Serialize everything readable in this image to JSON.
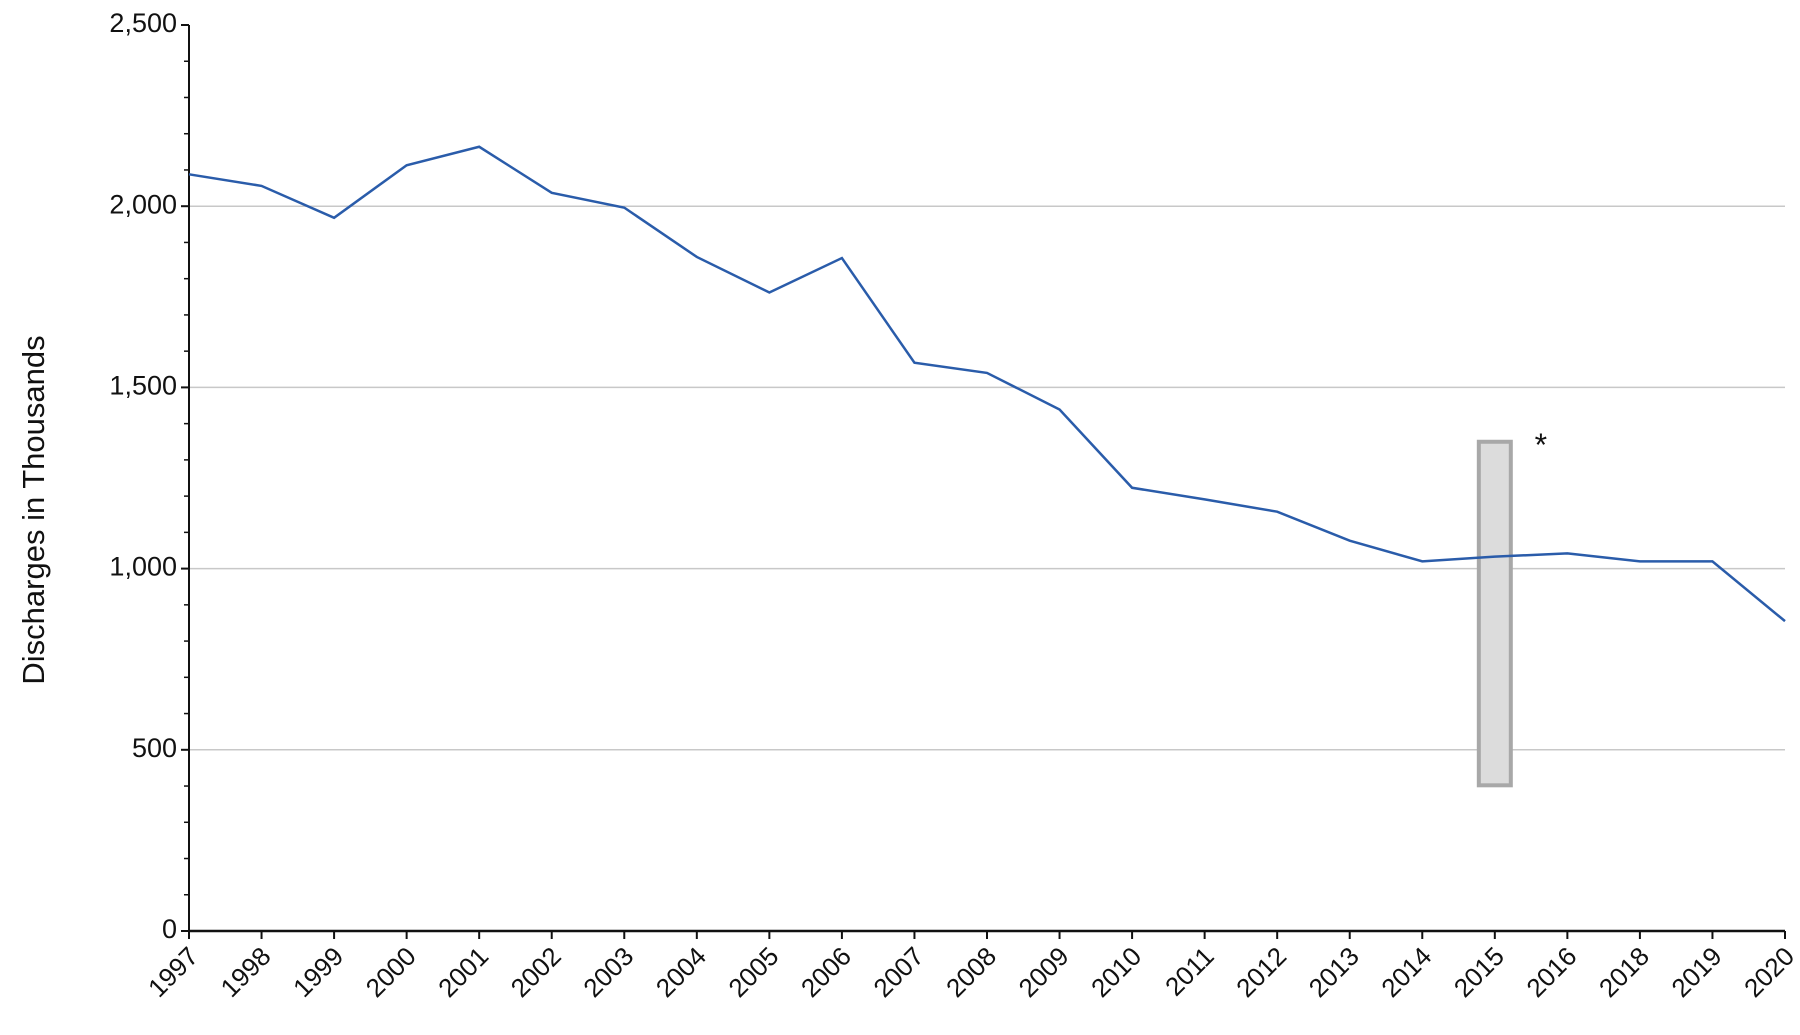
{
  "chart_data": {
    "type": "line",
    "y_label": "Discharges in Thousands",
    "categories": [
      "1997",
      "1998",
      "1999",
      "2000",
      "2001",
      "2002",
      "2003",
      "2004",
      "2005",
      "2006",
      "2007",
      "2008",
      "2009",
      "2010",
      "2011",
      "2012",
      "2013",
      "2014",
      "2015",
      "2016",
      "2018",
      "2019",
      "2020"
    ],
    "series": [
      {
        "color": "#2a5caa",
        "values": [
          2088,
          2056,
          1968,
          2113,
          2164,
          2037,
          1996,
          1860,
          1762,
          1857,
          1568,
          1540,
          1439,
          1223,
          1191,
          1157,
          1077,
          1020,
          1033,
          1042,
          1020,
          1020,
          855
        ]
      }
    ],
    "ylim": [
      0,
      2500
    ],
    "yticks": [
      {
        "value": 0,
        "label": "0"
      },
      {
        "value": 500,
        "label": "500"
      },
      {
        "value": 1000,
        "label": "1,000"
      },
      {
        "value": 1500,
        "label": "1,500"
      },
      {
        "value": 2000,
        "label": "2,000"
      },
      {
        "value": 2500,
        "label": "2,500"
      }
    ],
    "grid": true,
    "break_band": {
      "category": "2015",
      "range": [
        402,
        1350
      ],
      "label": "*"
    }
  }
}
